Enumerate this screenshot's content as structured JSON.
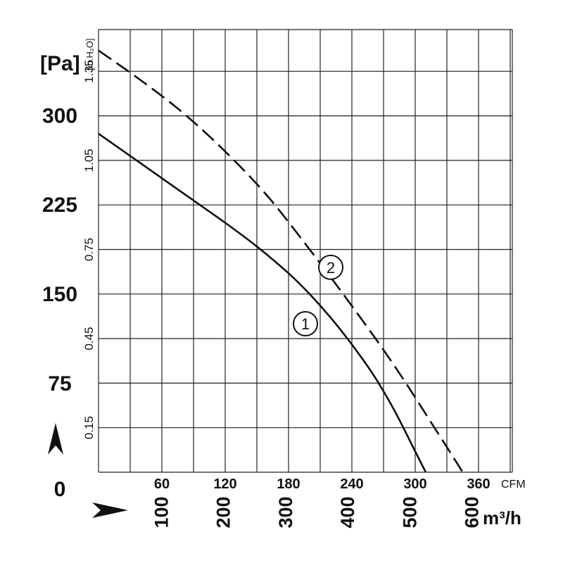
{
  "chart_data": {
    "type": "line",
    "x_units": {
      "primary": "CFM",
      "secondary": "m3/h"
    },
    "y_units": {
      "primary": "Pa",
      "secondary": "in.H2O"
    },
    "xlim": [
      0,
      400
    ],
    "ylim": [
      0,
      1.42
    ],
    "grid": true,
    "y_left_label": "[Pa]",
    "y_left_ticks": [
      {
        "label": "300",
        "value": 1.203
      },
      {
        "label": "225",
        "value": 0.903
      },
      {
        "label": "150",
        "value": 0.602
      },
      {
        "label": "75",
        "value": 0.301
      },
      {
        "label": "0",
        "value": 0
      }
    ],
    "y_right_ticks": [
      {
        "label": "0.15",
        "value": 0.15
      },
      {
        "label": "0.45",
        "value": 0.45
      },
      {
        "label": "0.75",
        "value": 0.75
      },
      {
        "label": "1.05",
        "value": 1.05
      },
      {
        "label": "1.35",
        "value": 1.35
      }
    ],
    "y_right_unit": "[in.H₂O]",
    "x_cfm_ticks": [
      {
        "label": "60",
        "value": 60
      },
      {
        "label": "120",
        "value": 120
      },
      {
        "label": "180",
        "value": 180
      },
      {
        "label": "240",
        "value": 240
      },
      {
        "label": "300",
        "value": 300
      },
      {
        "label": "360",
        "value": 360
      }
    ],
    "x_cfm_unit": "CFM",
    "x_m3h_ticks": [
      {
        "label": "100",
        "value": 58.86
      },
      {
        "label": "200",
        "value": 117.72
      },
      {
        "label": "300",
        "value": 176.58
      },
      {
        "label": "400",
        "value": 235.44
      },
      {
        "label": "500",
        "value": 294.3
      },
      {
        "label": "600",
        "value": 353.16
      }
    ],
    "x_m3h_unit": "m³/h",
    "series": [
      {
        "marker": "1",
        "style": "solid",
        "x": [
          0,
          40,
          80,
          120,
          150,
          180,
          200,
          220,
          240,
          260,
          280,
          300,
          310
        ],
        "y": [
          1.14,
          1.04,
          0.94,
          0.84,
          0.76,
          0.67,
          0.6,
          0.52,
          0.43,
          0.33,
          0.21,
          0.07,
          0
        ]
      },
      {
        "marker": "2",
        "style": "dashed",
        "x": [
          0,
          40,
          80,
          120,
          160,
          200,
          240,
          280,
          320,
          345
        ],
        "y": [
          1.42,
          1.32,
          1.21,
          1.08,
          0.93,
          0.75,
          0.56,
          0.36,
          0.14,
          0
        ]
      }
    ],
    "marker_labels": [
      {
        "text": "1",
        "x": 196,
        "y": 0.5
      },
      {
        "text": "2",
        "x": 220,
        "y": 0.69
      }
    ]
  }
}
